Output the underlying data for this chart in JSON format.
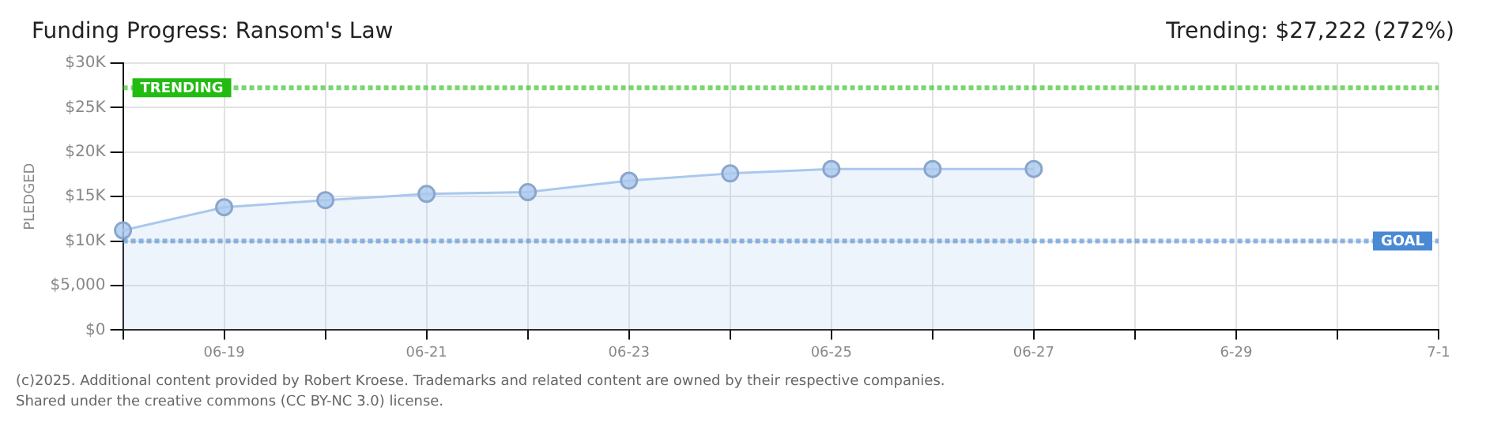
{
  "chart_data": {
    "type": "area",
    "title": "Funding Progress: Ransom's Law",
    "subtitle": "Trending: $27,222 (272%)",
    "ylabel": "PLEDGED",
    "annotations": [
      "(c)2025. Additional content provided by Robert Kroese. Trademarks and related content are owned by their respective companies.",
      "Shared under the creative commons (CC BY-NC 3.0) license."
    ],
    "categories": [
      null,
      "06-19",
      null,
      "06-21",
      null,
      "06-23",
      null,
      "06-25",
      null,
      "06-27",
      null,
      "6-29",
      null,
      "7-1"
    ],
    "series": [
      {
        "color": "#a9c8ee",
        "values": [
          11200,
          13800,
          14600,
          15300,
          15500,
          16800,
          17600,
          18100,
          18100,
          18100,
          null,
          null,
          null,
          null
        ]
      }
    ],
    "ylim": [
      0,
      30000
    ],
    "yticks": [
      {
        "value": 0,
        "label": "$0"
      },
      {
        "value": 5000,
        "label": "$5,000"
      },
      {
        "value": 10000,
        "label": "$10K"
      },
      {
        "value": 15000,
        "label": "$15K"
      },
      {
        "value": 20000,
        "label": "$20K"
      },
      {
        "value": 25000,
        "label": "$25K"
      },
      {
        "value": 30000,
        "label": "$30K"
      }
    ],
    "ref_lines": [
      {
        "axis": "y",
        "value": 27222,
        "label": "TRENDING",
        "color": "#22bb11",
        "line_style": "dotted"
      },
      {
        "axis": "y",
        "value": 10000,
        "label": "GOAL",
        "color": "#4a8ad4",
        "line_style": "dotted"
      }
    ],
    "grid": true,
    "marker": "circle",
    "legend": false
  }
}
